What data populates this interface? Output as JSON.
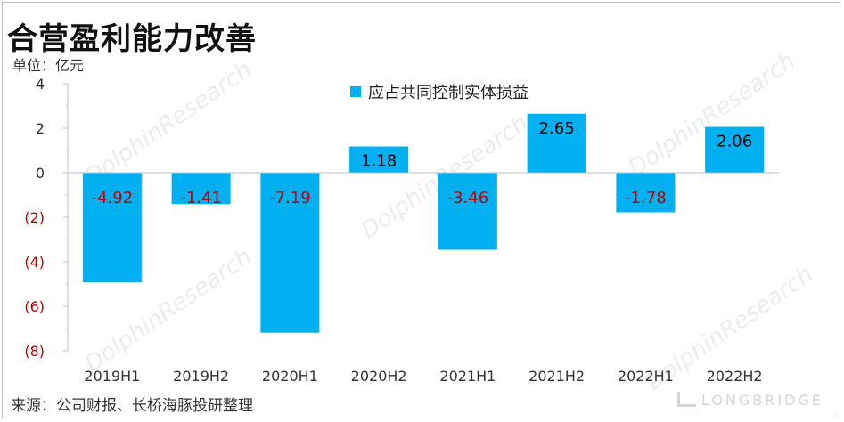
{
  "header": {
    "title": "合营盈利能力改善",
    "unit_label": "单位：亿元"
  },
  "legend": {
    "label": "应占共同控制实体损益"
  },
  "footer": {
    "source": "来源：公司财报、长桥海豚投研整理",
    "brand": "LONGBRIDGE"
  },
  "watermark": {
    "text": "DolphinResearch"
  },
  "colors": {
    "bar": "#00b0f0",
    "negative_label": "#c00000",
    "positive_label": "#000000",
    "negative_tick": "#c00000"
  },
  "chart_data": {
    "type": "bar",
    "categories": [
      "2019H1",
      "2019H2",
      "2020H1",
      "2020H2",
      "2021H1",
      "2021H2",
      "2022H1",
      "2022H2"
    ],
    "series": [
      {
        "name": "应占共同控制实体损益",
        "values": [
          -4.92,
          -1.41,
          -7.19,
          1.18,
          -3.46,
          2.65,
          -1.78,
          2.06
        ]
      }
    ],
    "data_labels": [
      "-4.92",
      "-1.41",
      "-7.19",
      "1.18",
      "-3.46",
      "2.65",
      "-1.78",
      "2.06"
    ],
    "y_ticks": [
      4,
      2,
      0,
      -2,
      -4,
      -6,
      -8
    ],
    "y_tick_labels": [
      "4",
      "2",
      "0",
      "(2)",
      "(4)",
      "(6)",
      "(8)"
    ],
    "ylim": [
      -8,
      4
    ],
    "grid": false,
    "legend_position": "top-center"
  }
}
